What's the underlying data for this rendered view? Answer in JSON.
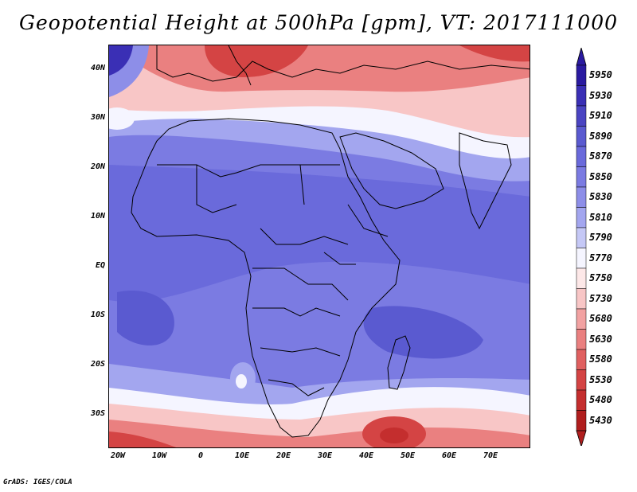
{
  "title": "Geopotential Height at 500hPa [gpm], VT: 2017111000",
  "footer": "GrADS: IGES/COLA",
  "axes": {
    "lat_labels": [
      "40N",
      "30N",
      "20N",
      "10N",
      "EQ",
      "10S",
      "20S",
      "30S"
    ],
    "lon_labels": [
      "20W",
      "10W",
      "0",
      "10E",
      "20E",
      "30E",
      "40E",
      "50E",
      "60E",
      "70E"
    ],
    "lat_range": [
      -37,
      44
    ],
    "lon_range": [
      -22,
      80
    ]
  },
  "colorbar": {
    "levels": [
      "5950",
      "5930",
      "5910",
      "5890",
      "5870",
      "5850",
      "5830",
      "5810",
      "5790",
      "5770",
      "5750",
      "5730",
      "5680",
      "5630",
      "5580",
      "5530",
      "5480",
      "5430"
    ],
    "colors": [
      "#2a1aa0",
      "#3a2fb5",
      "#4a44c2",
      "#5a5ad0",
      "#6a6adb",
      "#7b7be2",
      "#8d8ee8",
      "#a3a6ef",
      "#c5c8f6",
      "#f5f5ff",
      "#fde8e8",
      "#f8c6c6",
      "#f2a2a2",
      "#ea8080",
      "#e06060",
      "#d44444",
      "#c42e2e",
      "#b01e1e"
    ]
  },
  "map_colors": {
    "deep_blue": "#3a2fb5",
    "blue": "#6a6adb",
    "mid_blue": "#7b7be2",
    "light_blue": "#8d8ee8",
    "pale_blue": "#a3a6ef",
    "white": "#f5f5ff",
    "pale_red": "#f8c6c6",
    "red": "#ea8080",
    "deep_red": "#d44444",
    "darkest_red": "#c42e2e"
  }
}
